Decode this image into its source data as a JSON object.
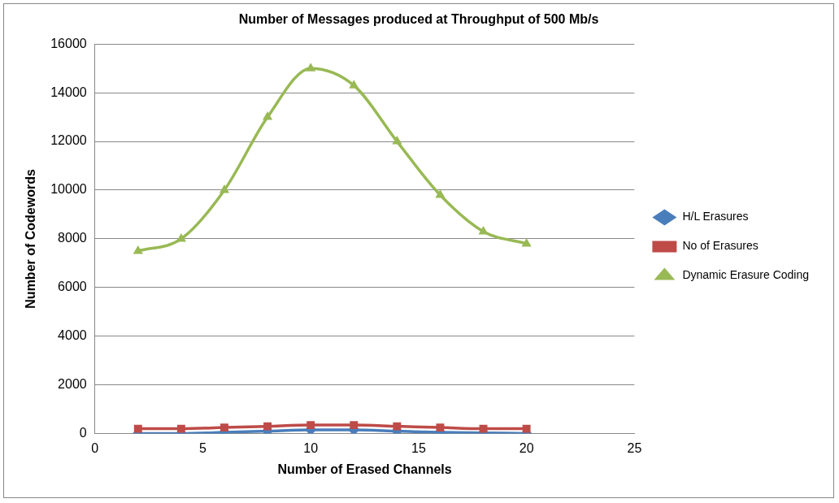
{
  "chart_data": {
    "type": "line",
    "title": "Number of Messages produced at Throughput of 500 Mb/s",
    "xlabel": "Number of Erased Channels",
    "ylabel": "Number of Codewords",
    "x": [
      2,
      4,
      6,
      8,
      10,
      12,
      14,
      16,
      18,
      20
    ],
    "series": [
      {
        "name": "H/L Erasures",
        "color": "#4a7ebb",
        "marker": "diamond",
        "values": [
          0,
          0,
          50,
          100,
          150,
          150,
          100,
          50,
          30,
          0
        ]
      },
      {
        "name": "No of Erasures",
        "color": "#be4b48",
        "marker": "square",
        "values": [
          200,
          200,
          250,
          300,
          350,
          350,
          300,
          250,
          200,
          200
        ]
      },
      {
        "name": "Dynamic Erasure Coding",
        "color": "#98b954",
        "marker": "triangle",
        "values": [
          7500,
          8000,
          10000,
          13000,
          15000,
          14300,
          12000,
          9800,
          8300,
          7800
        ]
      }
    ],
    "xlim": [
      0,
      25
    ],
    "xticks": [
      0,
      5,
      10,
      15,
      20,
      25
    ],
    "ylim": [
      0,
      16000
    ],
    "yticks": [
      0,
      2000,
      4000,
      6000,
      8000,
      10000,
      12000,
      14000,
      16000
    ],
    "grid": "y",
    "legend": "right",
    "line_style": "solid"
  }
}
